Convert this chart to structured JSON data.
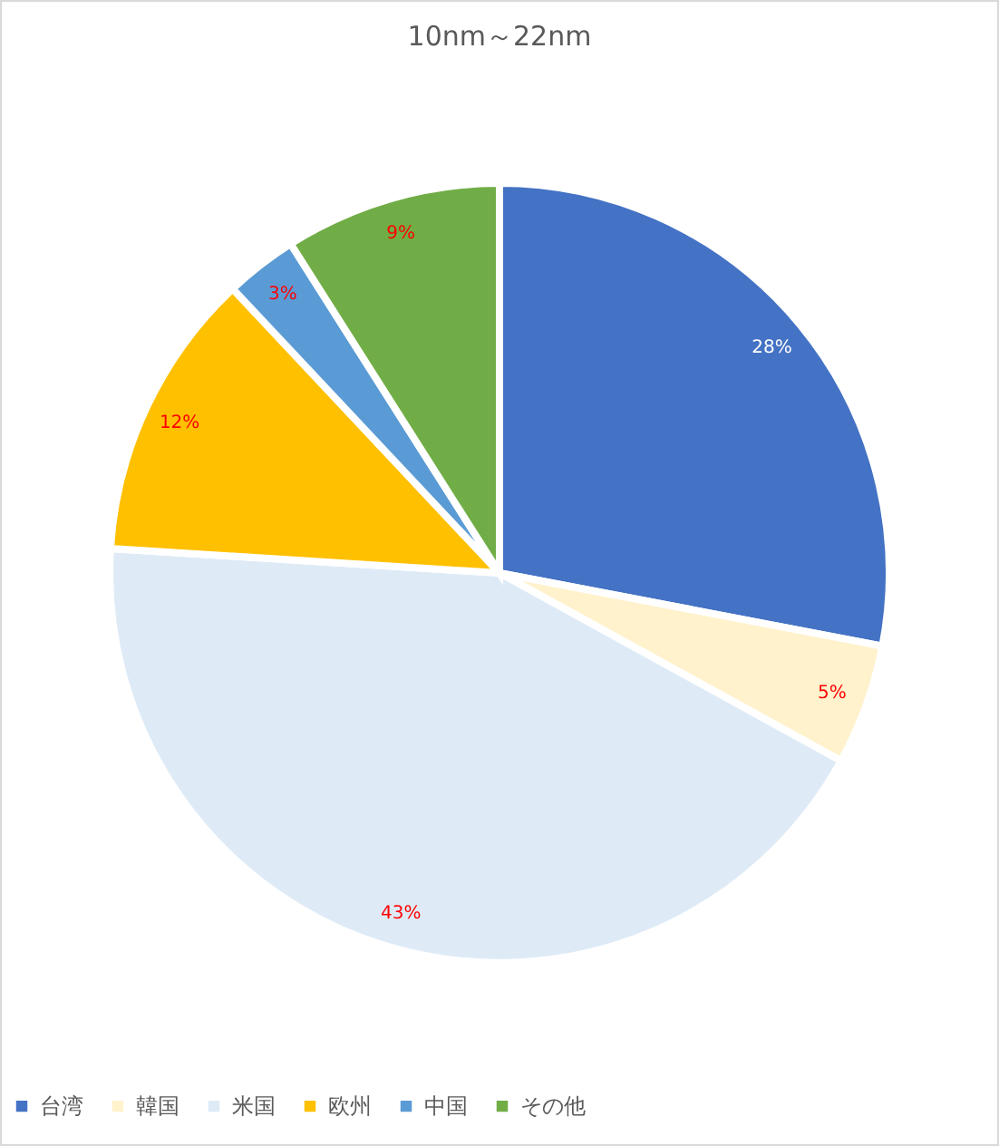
{
  "chart_data": {
    "type": "pie",
    "title": "10nm～22nm",
    "categories": [
      "台湾",
      "韓国",
      "米国",
      "欧州",
      "中国",
      "その他"
    ],
    "values": [
      28,
      5,
      43,
      12,
      3,
      9
    ],
    "value_labels": [
      "28%",
      "5%",
      "43%",
      "12%",
      "3%",
      "9%"
    ],
    "colors": [
      "#4472c4",
      "#fff2cc",
      "#deebf7",
      "#ffc000",
      "#5b9bd5",
      "#70ad47"
    ],
    "legend": "bottom"
  }
}
